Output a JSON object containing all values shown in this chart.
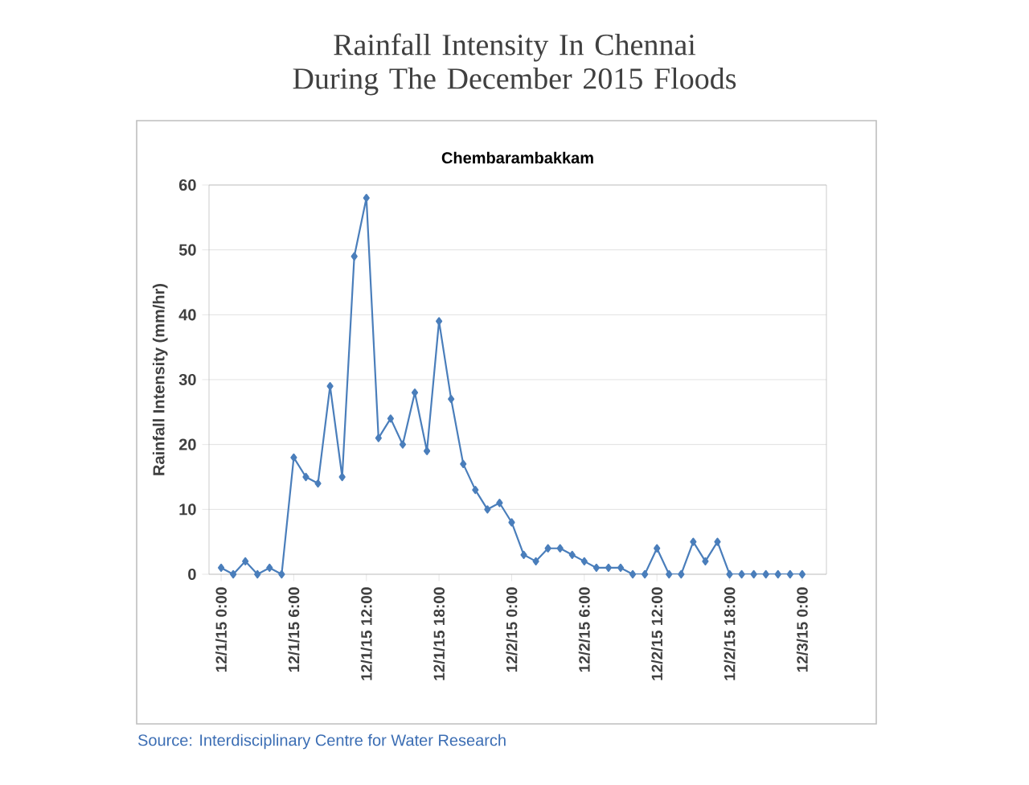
{
  "chart_data": {
    "type": "line",
    "title": "Rainfall Intensity In Chennai During The December 2015 Floods",
    "subtitle": "Chembarambakkam",
    "ylabel": "Rainfall Intensity (mm/hr)",
    "annotations": [
      "Source: Interdisciplinary Centre for Water Research"
    ],
    "x": [
      "2015-12-01T00:00",
      "2015-12-01T01:00",
      "2015-12-01T02:00",
      "2015-12-01T03:00",
      "2015-12-01T04:00",
      "2015-12-01T05:00",
      "2015-12-01T06:00",
      "2015-12-01T07:00",
      "2015-12-01T08:00",
      "2015-12-01T09:00",
      "2015-12-01T10:00",
      "2015-12-01T11:00",
      "2015-12-01T12:00",
      "2015-12-01T13:00",
      "2015-12-01T14:00",
      "2015-12-01T15:00",
      "2015-12-01T16:00",
      "2015-12-01T17:00",
      "2015-12-01T18:00",
      "2015-12-01T19:00",
      "2015-12-01T20:00",
      "2015-12-01T21:00",
      "2015-12-01T22:00",
      "2015-12-01T23:00",
      "2015-12-02T00:00",
      "2015-12-02T01:00",
      "2015-12-02T02:00",
      "2015-12-02T03:00",
      "2015-12-02T04:00",
      "2015-12-02T05:00",
      "2015-12-02T06:00",
      "2015-12-02T07:00",
      "2015-12-02T08:00",
      "2015-12-02T09:00",
      "2015-12-02T10:00",
      "2015-12-02T11:00",
      "2015-12-02T12:00",
      "2015-12-02T13:00",
      "2015-12-02T14:00",
      "2015-12-02T15:00",
      "2015-12-02T16:00",
      "2015-12-02T17:00",
      "2015-12-02T18:00",
      "2015-12-02T19:00",
      "2015-12-02T20:00",
      "2015-12-02T21:00",
      "2015-12-02T22:00",
      "2015-12-02T23:00",
      "2015-12-03T00:00"
    ],
    "series": [
      {
        "color": "#4a7ebb",
        "values": [
          1,
          0,
          2,
          0,
          1,
          0,
          18,
          15,
          14,
          29,
          15,
          49,
          58,
          21,
          24,
          20,
          28,
          19,
          39,
          27,
          17,
          13,
          10,
          11,
          8,
          3,
          2,
          4,
          4,
          3,
          2,
          1,
          1,
          1,
          0,
          0,
          4,
          0,
          0,
          5,
          2,
          5,
          0,
          0,
          0,
          0,
          0,
          0,
          0
        ]
      }
    ],
    "xlim": [
      "2015-11-30T23:00",
      "2015-12-03T02:00"
    ],
    "ylim": [
      0,
      60
    ],
    "yticks": [
      0,
      10,
      20,
      30,
      40,
      50,
      60
    ],
    "xticks": [
      {
        "value": "2015-12-01T00:00",
        "label": "12/1/15 0:00"
      },
      {
        "value": "2015-12-01T06:00",
        "label": "12/1/15 6:00"
      },
      {
        "value": "2015-12-01T12:00",
        "label": "12/1/15 12:00"
      },
      {
        "value": "2015-12-01T18:00",
        "label": "12/1/15 18:00"
      },
      {
        "value": "2015-12-02T00:00",
        "label": "12/2/15 0:00"
      },
      {
        "value": "2015-12-02T06:00",
        "label": "12/2/15 6:00"
      },
      {
        "value": "2015-12-02T12:00",
        "label": "12/2/15 12:00"
      },
      {
        "value": "2015-12-02T18:00",
        "label": "12/2/15 18:00"
      },
      {
        "value": "2015-12-03T00:00",
        "label": "12/3/15 0:00"
      }
    ],
    "grid": "y",
    "marker": "diamond",
    "line_style": "solid"
  }
}
